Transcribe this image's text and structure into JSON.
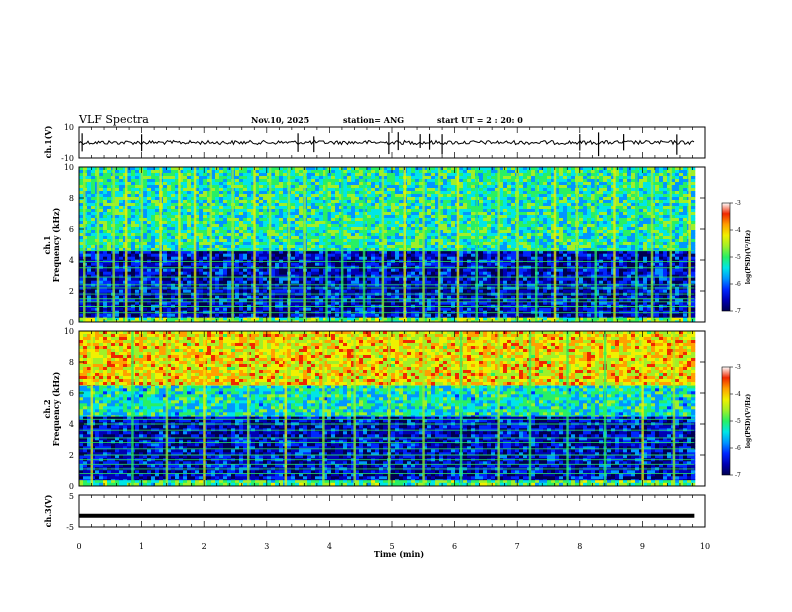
{
  "header": {
    "title": "VLF Spectra",
    "date": "Nov.10, 2025",
    "station": "station= ANG",
    "start": "start  UT =   2 : 20: 0"
  },
  "x_axis": {
    "label": "Time  (min)",
    "ticks": [
      "0",
      "1",
      "2",
      "3",
      "4",
      "5",
      "6",
      "7",
      "8",
      "9",
      "10"
    ],
    "range": [
      0,
      10
    ],
    "data_end": 9.83
  },
  "colormap": [
    "#000050",
    "#0000b4",
    "#0028ff",
    "#0096ff",
    "#00e6e6",
    "#28f064",
    "#a0f028",
    "#f0f000",
    "#ffa000",
    "#f02800",
    "#c80000"
  ],
  "colorbar": {
    "label": "log(PSD)(V²/Hz)",
    "ticks": [
      "-3",
      "-4",
      "-5",
      "-6",
      "-7"
    ],
    "range": [
      -7,
      -3
    ]
  },
  "chart_data": [
    {
      "type": "line",
      "panel": "ch1-waveform",
      "ylabel": "ch.1(V)",
      "ylim": [
        -10,
        10
      ],
      "ytick_labels": [
        "10",
        "-10"
      ],
      "baseline": 0,
      "note_values": "noisy trace near 0 V with spikes",
      "spike_times": [
        0.05,
        1.0,
        3.5,
        3.75,
        4.95,
        5.1,
        5.45,
        5.6,
        5.8,
        8.0,
        8.3,
        8.7,
        9.55
      ]
    },
    {
      "type": "heatmap",
      "panel": "ch1-spectrogram",
      "ylabel_line1": "ch.1",
      "ylabel_line2": "Frequency  (kHz)",
      "ylim": [
        0,
        10
      ],
      "ytick_labels": [
        "0",
        "2",
        "4",
        "6",
        "8",
        "10"
      ],
      "colorbar_range": [
        -7,
        -3
      ],
      "bands_khz": [
        {
          "range": [
            0,
            0.3
          ],
          "level": 0.55
        },
        {
          "range": [
            0.3,
            4.6
          ],
          "level": 0.12
        },
        {
          "range": [
            4.6,
            10
          ],
          "level": 0.45
        }
      ],
      "horizontal_lines_khz": [
        0.6,
        1.0,
        1.3,
        1.5,
        1.8,
        2.2,
        2.4,
        2.9,
        3.5,
        3.9,
        4.6
      ],
      "vertical_bursts_min": [
        0.08,
        0.3,
        0.55,
        0.75,
        1.0,
        1.3,
        1.6,
        1.85,
        2.1,
        2.45,
        2.8,
        3.05,
        3.35,
        3.6,
        3.95,
        4.2,
        4.55,
        4.85,
        5.2,
        5.5,
        5.75,
        6.05,
        6.35,
        6.7,
        7.0,
        7.3,
        7.6,
        7.95,
        8.25,
        8.55,
        8.9,
        9.15,
        9.45,
        9.75
      ]
    },
    {
      "type": "heatmap",
      "panel": "ch2-spectrogram",
      "ylabel_line1": "ch.2",
      "ylabel_line2": "Frequency  (kHz)",
      "ylim": [
        0,
        10
      ],
      "ytick_labels": [
        "0",
        "2",
        "4",
        "6",
        "8",
        "10"
      ],
      "colorbar_range": [
        -7,
        -3
      ],
      "bands_khz": [
        {
          "range": [
            0,
            0.4
          ],
          "level": 0.5
        },
        {
          "range": [
            0.4,
            4.5
          ],
          "level": 0.12
        },
        {
          "range": [
            4.5,
            6.5
          ],
          "level": 0.42
        },
        {
          "range": [
            6.5,
            10
          ],
          "level": 0.72
        }
      ],
      "horizontal_lines_khz": [
        0.8,
        1.1,
        1.4,
        1.7,
        2.0,
        2.4,
        2.8,
        3.1,
        3.6,
        4.0,
        4.3
      ],
      "vertical_bursts_min": [
        0.2,
        0.85,
        1.4,
        2.0,
        2.7,
        3.3,
        3.9,
        4.4,
        4.95,
        5.5,
        6.1,
        6.7,
        7.2,
        7.8,
        8.4,
        9.0,
        9.5
      ]
    },
    {
      "type": "line",
      "panel": "ch3-waveform",
      "ylabel": "ch.3(V)",
      "ylim": [
        -5,
        5
      ],
      "ytick_labels": [
        "5",
        "-5"
      ],
      "baseline": -1.5,
      "note_values": "thick flat trace"
    }
  ]
}
